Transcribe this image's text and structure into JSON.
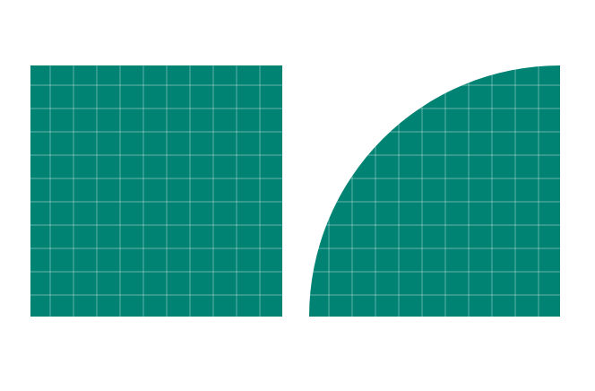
{
  "shapes": {
    "square": {
      "shape": "square",
      "fill": "#008373",
      "grid": true,
      "grid_color": "#ffffff"
    },
    "quarter_circle": {
      "shape": "quarter-circle",
      "fill": "#008373",
      "grid": true,
      "grid_color": "#ffffff"
    }
  }
}
